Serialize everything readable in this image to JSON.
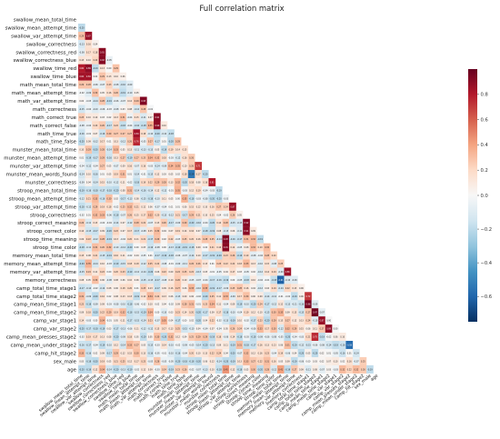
{
  "chart_data": {
    "type": "heatmap",
    "title": "Full correlation matrix",
    "variables": [
      "swallow_mean_total_time",
      "swallow_mean_attempt_time",
      "swallow_var_attempt_time",
      "swallow_correctness",
      "swallow_correctness_red",
      "swallow_correctness_blue",
      "swallow_time_red",
      "swallow_time_blue",
      "math_mean_total_time",
      "math_mean_attempt_time",
      "math_var_attempt_time",
      "math_correctness",
      "math_correct_true",
      "math_correct_false",
      "math_time_true",
      "math_time_false",
      "munster_mean_total_time",
      "munster_mean_attempt_time",
      "munster_var_attempt_time",
      "munster_mean_words_found",
      "munster_correctness",
      "stroop_mean_total_time",
      "stroop_mean_attempt_time",
      "stroop_var_attempt_time",
      "stroop_correctness",
      "stroop_correct_meaning",
      "stroop_correct_color",
      "stroop_time_meaning",
      "stroop_time_color",
      "memory_mean_total_time",
      "memory_mean_attempt_time",
      "memory_var_attempt_time",
      "memory_correctness",
      "camp_total_time_stage1",
      "camp_total_time_stage2",
      "camp_mean_time_stage1",
      "camp_mean_time_stage2",
      "camp_var_stage1",
      "camp_var_stage2",
      "camp_mean_presses_stage2",
      "camp_mean_under_stage2",
      "camp_hit_stage2",
      "sex_male",
      "age"
    ],
    "triangle": "lower",
    "colorbar": {
      "colormap": "RdBu_r",
      "vmin": -0.75,
      "vmax": 1.0,
      "ticks": [
        -0.6,
        -0.4,
        -0.2,
        0.0,
        0.2,
        0.4,
        0.6,
        0.8
      ]
    },
    "strong_pairs": [
      [
        "swallow_var_attempt_time",
        "swallow_mean_attempt_time",
        0.87
      ],
      [
        "swallow_correctness_red",
        "swallow_correctness",
        0.91
      ],
      [
        "swallow_correctness_blue",
        "swallow_correctness",
        0.92
      ],
      [
        "swallow_time_red",
        "swallow_mean_total_time",
        0.8
      ],
      [
        "swallow_time_red",
        "swallow_mean_attempt_time",
        0.89
      ],
      [
        "swallow_time_blue",
        "swallow_mean_total_time",
        0.84
      ],
      [
        "swallow_time_blue",
        "swallow_mean_attempt_time",
        0.84
      ],
      [
        "math_var_attempt_time",
        "math_mean_attempt_time",
        0.93
      ],
      [
        "math_correct_true",
        "math_correctness",
        0.91
      ],
      [
        "math_correct_false",
        "math_correctness",
        0.9
      ],
      [
        "math_time_true",
        "math_mean_total_time",
        0.84
      ],
      [
        "math_time_false",
        "math_mean_total_time",
        0.76
      ],
      [
        "munster_var_attempt_time",
        "munster_mean_attempt_time",
        0.71
      ],
      [
        "munster_mean_words_found",
        "munster_mean_total_time",
        -0.54
      ],
      [
        "munster_correctness",
        "munster_mean_words_found",
        0.81
      ],
      [
        "stroop_var_attempt_time",
        "stroop_mean_attempt_time",
        0.87
      ],
      [
        "stroop_correct_meaning",
        "stroop_correctness",
        0.92
      ],
      [
        "stroop_correct_color",
        "stroop_correctness",
        0.91
      ],
      [
        "stroop_time_meaning",
        "stroop_mean_total_time",
        0.93
      ],
      [
        "stroop_time_color",
        "stroop_mean_total_time",
        0.91
      ],
      [
        "memory_var_attempt_time",
        "memory_mean_attempt_time",
        0.86
      ],
      [
        "memory_correctness",
        "memory_mean_total_time",
        -0.61
      ],
      [
        "camp_total_time_stage2",
        "camp_total_time_stage1",
        0.72
      ],
      [
        "camp_mean_time_stage1",
        "camp_total_time_stage1",
        0.96
      ],
      [
        "camp_mean_time_stage2",
        "camp_total_time_stage2",
        0.97
      ],
      [
        "camp_var_stage1",
        "camp_mean_time_stage1",
        0.87
      ],
      [
        "camp_var_stage2",
        "camp_mean_time_stage2",
        0.89
      ],
      [
        "camp_mean_presses_stage2",
        "camp_total_time_stage2",
        0.75
      ],
      [
        "camp_mean_under_stage2",
        "camp_mean_presses_stage2",
        -0.58
      ],
      [
        "age",
        "stroop_mean_total_time",
        0.45
      ],
      [
        "age",
        "memory_mean_total_time",
        0.41
      ]
    ],
    "background_correlation_range": [
      -0.2,
      0.35
    ],
    "grid": false,
    "legend": "colorbar-right"
  }
}
